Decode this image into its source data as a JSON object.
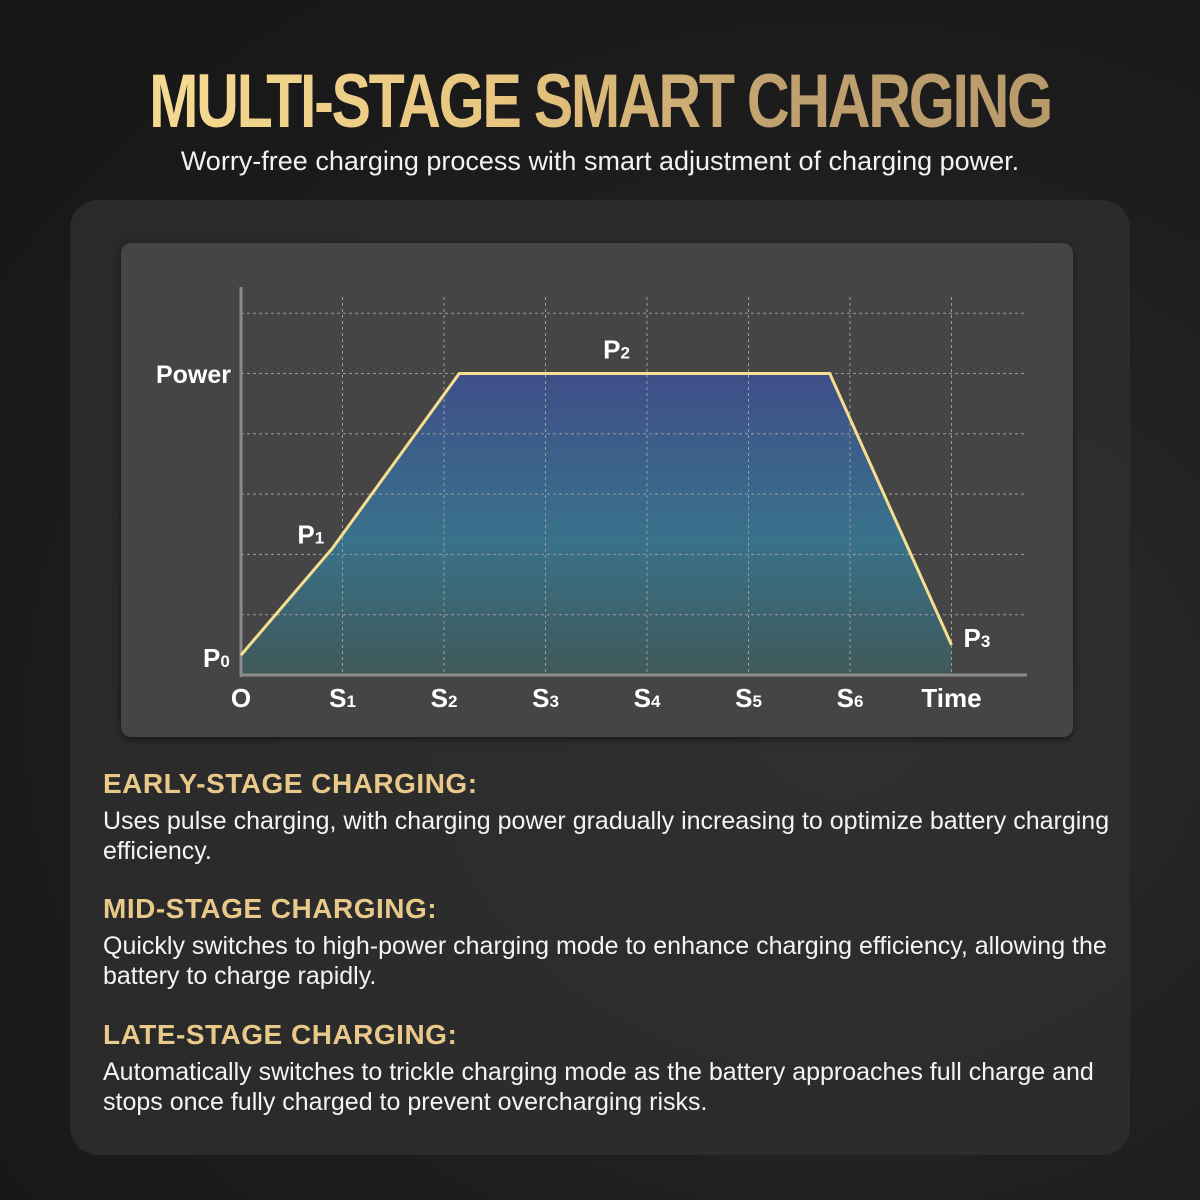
{
  "header": {
    "title": "MULTI-STAGE SMART CHARGING",
    "subtitle": "Worry-free charging process with smart adjustment of charging power."
  },
  "colors": {
    "title_gold": "#e9c98a",
    "line": "#f5de90",
    "fill_top": "#3e4f8c",
    "fill_bottom": "#3f5a5a",
    "chart_bg": "#454545"
  },
  "chart_data": {
    "type": "area",
    "ylabel": "Power",
    "xlabel": "Time",
    "x_ticks": [
      "O",
      "S1",
      "S2",
      "S3",
      "S4",
      "S5",
      "S6",
      "Time"
    ],
    "grid": true,
    "xlim": [
      0,
      7
    ],
    "ylim": [
      0,
      6.5
    ],
    "points": [
      {
        "label": "P0",
        "x": 0,
        "y": 0.33
      },
      {
        "label": "P1",
        "x": 0.9,
        "y": 2.1
      },
      {
        "label": "",
        "x": 2.15,
        "y": 5
      },
      {
        "label": "P2",
        "x": 3.7,
        "y": 5
      },
      {
        "label": "",
        "x": 5.8,
        "y": 5
      },
      {
        "label": "P3",
        "x": 7,
        "y": 0.5
      }
    ]
  },
  "sections": [
    {
      "heading": "EARLY-STAGE CHARGING:",
      "text": "Uses pulse charging, with charging power gradually increasing to optimize battery charging efficiency."
    },
    {
      "heading": "MID-STAGE CHARGING:",
      "text": "Quickly switches to high-power charging mode to enhance charging efficiency, allowing the battery to charge rapidly."
    },
    {
      "heading": "LATE-STAGE CHARGING:",
      "text": "Automatically switches to trickle charging mode as the battery approaches full charge and stops once fully charged to prevent overcharging risks."
    }
  ]
}
